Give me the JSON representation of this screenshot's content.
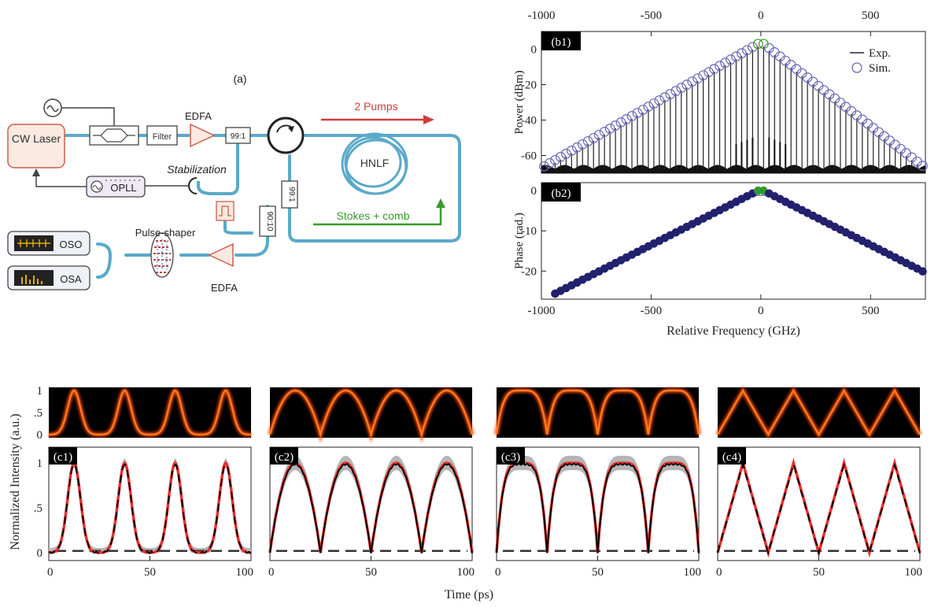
{
  "diagram": {
    "panel_label": "(a)",
    "cw_laser": "CW Laser",
    "filter": "Filter",
    "edfa_top": "EDFA",
    "coupler_99_1": "99:1",
    "pumps": "2 Pumps",
    "hnlf": "HNLF",
    "stabilization": "Stabilization",
    "opll": "OPLL",
    "coupler_vertical_1": "99:1",
    "coupler_vertical_2": "90:10",
    "stokes": "Stokes + comb",
    "oso": "OSO",
    "osa": "OSA",
    "pulse_shaper": "Pulse-shaper",
    "edfa_bottom": "EDFA",
    "colors": {
      "fiber": "#5aa9c9",
      "laser_box": "#c9604a",
      "pumps_arrow": "#d43b3b",
      "stokes_arrow": "#3a9a2a"
    }
  },
  "spectrum": {
    "top_axis_ticks": [
      "-1000",
      "-500",
      "0",
      "500"
    ],
    "b1_label": "(b1)",
    "b1_ylabel": "Power (dBm)",
    "b1_yticks": [
      "0",
      "-20",
      "-40",
      "-60"
    ],
    "legend_exp": "Exp.",
    "legend_sim": "Sim.",
    "b2_label": "(b2)",
    "b2_ylabel": "Phase (rad.)",
    "b2_yticks": [
      "0",
      "-10",
      "-20"
    ],
    "xticks": [
      "-1000",
      "-500",
      "0",
      "500"
    ],
    "xlabel": "Relative Frequency (GHz)"
  },
  "chart_data": [
    {
      "type": "scatter",
      "id": "b1",
      "xlim": [
        -1000,
        750
      ],
      "ylim": [
        -70,
        10
      ],
      "line_spacing_ghz": 25,
      "pump_frequencies": [
        -12.5,
        12.5
      ],
      "envelope": {
        "x": [
          -1000,
          -12.5,
          12.5,
          750
        ],
        "y": [
          -67,
          3,
          3,
          -67
        ]
      },
      "noise_floor": -68
    },
    {
      "type": "scatter",
      "id": "b2",
      "xlim": [
        -1000,
        750
      ],
      "ylim": [
        -27,
        2
      ],
      "points_spacing_ghz": 25,
      "pump_frequencies": [
        -12.5,
        12.5
      ],
      "pump_phase": 0,
      "phase_slope_rad_per_ghz": -0.0277
    },
    {
      "type": "line",
      "id": "c",
      "xlim": [
        0,
        100
      ],
      "ylim": [
        0,
        1
      ],
      "xticks": [
        "0",
        "50",
        "100"
      ],
      "yticks": [
        "1",
        ".5",
        "0"
      ],
      "ylabel": "Normalized Intensity (a.u.)",
      "xlabel": "Time (ps)",
      "period_ps": 25,
      "peak_times_ps": [
        12.5,
        37.5,
        62.5,
        87.5
      ],
      "panels": [
        {
          "label": "(c1)",
          "shape": "gaussian"
        },
        {
          "label": "(c2)",
          "shape": "parabolic"
        },
        {
          "label": "(c3)",
          "shape": "flat-top"
        },
        {
          "label": "(c4)",
          "shape": "triangular"
        }
      ],
      "colors": {
        "measured": "#000000",
        "target": "#e83030",
        "spread": "#b5b5b5",
        "baseline": "#333333",
        "eye_bg": "#000000",
        "eye_trace": "#ff7a1a"
      }
    }
  ]
}
